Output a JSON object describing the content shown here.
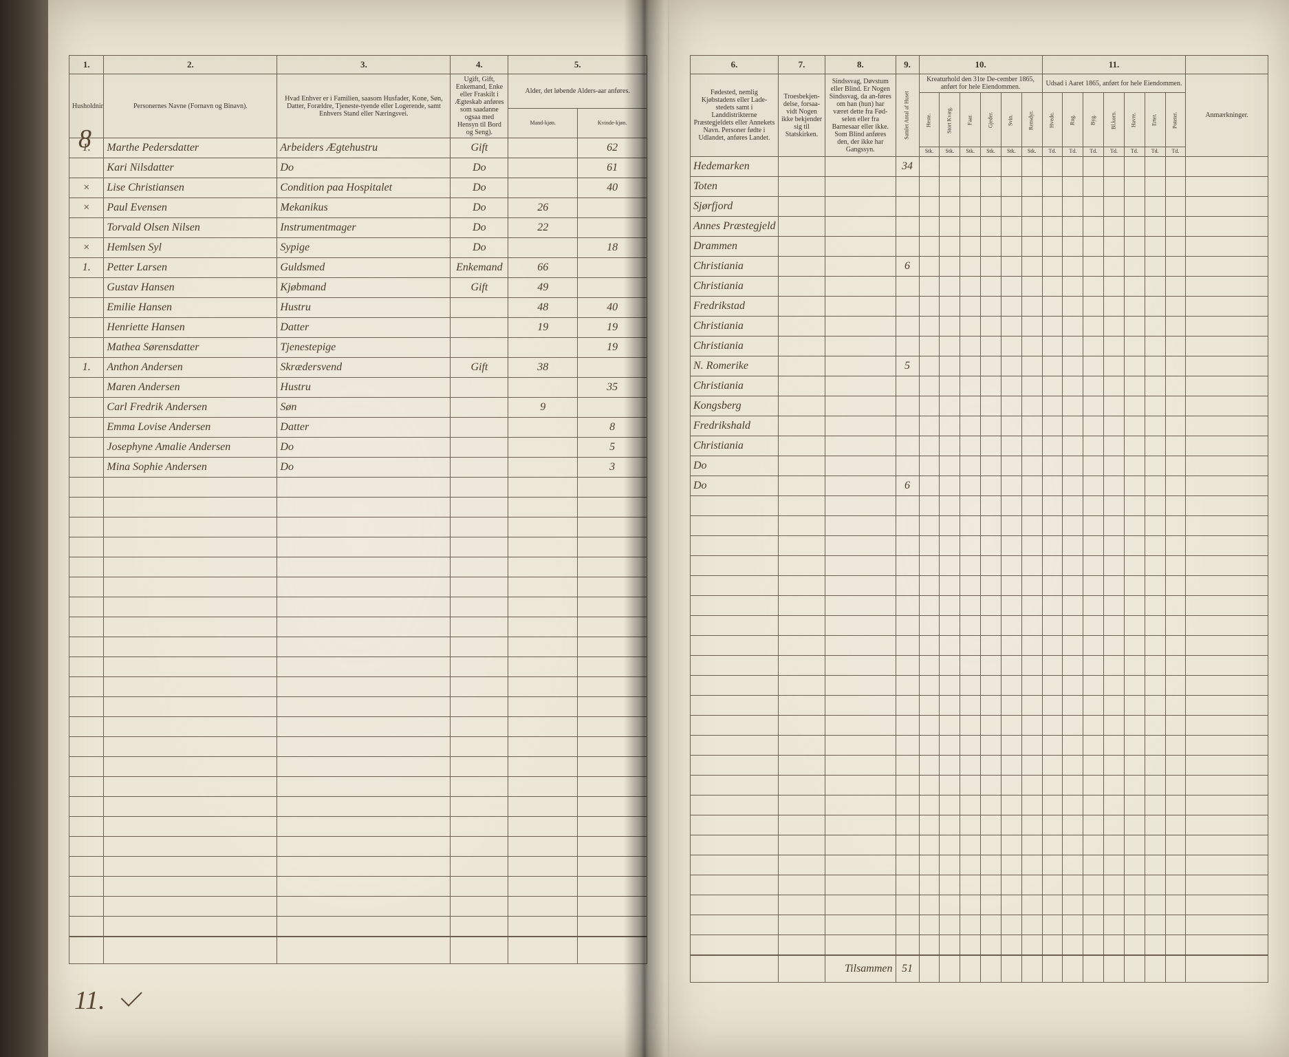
{
  "colors": {
    "paper": "#ece6d6",
    "ink_print": "#3a332a",
    "ink_hand": "#4a3a28",
    "rule": "#6b6050",
    "background": "#1a1410"
  },
  "left_page": {
    "margin_number": "8",
    "footer_margin_number": "11.",
    "columns": {
      "c1": "1.",
      "c2": "2.",
      "c3": "3.",
      "c4": "4.",
      "c5": "5."
    },
    "headers": {
      "h1": "Husholdninger.",
      "h2": "Personernes Navne (Fornavn og Binavn).",
      "h3": "Hvad Enhver er i Familien, saasom Husfader, Kone, Søn, Datter, Forældre, Tjeneste-tyende eller Logerende, samt Enhvers Stand eller Næringsvei.",
      "h4": "Ugift, Gift, Enkemand, Enke eller Fraskilt i Ægteskab anføres som saadanne ogsaa med Hensyn til Bord og Seng).",
      "h5_top": "Alder, det løbende Alders-aar anføres.",
      "h5_m": "Mand-kjøn.",
      "h5_k": "Kvinde-kjøn."
    },
    "rows": [
      {
        "hh": "1.",
        "mark": "",
        "name": "Marthe Pedersdatter",
        "rel": "Arbeiders Ægtehustru",
        "stat": "Gift",
        "m": "",
        "k": "62"
      },
      {
        "hh": "",
        "mark": "",
        "name": "Kari Nilsdatter",
        "rel": "Do",
        "stat": "Do",
        "m": "",
        "k": "61"
      },
      {
        "hh": "",
        "mark": "×",
        "name": "Lise Christiansen",
        "rel": "Condition paa Hospitalet",
        "stat": "Do",
        "m": "",
        "k": "40"
      },
      {
        "hh": "",
        "mark": "×",
        "name": "Paul Evensen",
        "rel": "Mekanikus",
        "stat": "Do",
        "m": "26",
        "k": ""
      },
      {
        "hh": "",
        "mark": "",
        "name": "Torvald Olsen Nilsen",
        "rel": "Instrumentmager",
        "stat": "Do",
        "m": "22",
        "k": ""
      },
      {
        "hh": "",
        "mark": "×",
        "name": "Hemlsen Syl",
        "rel": "Sypige",
        "stat": "Do",
        "m": "",
        "k": "18"
      },
      {
        "hh": "1.",
        "mark": "",
        "name": "Petter Larsen",
        "rel": "Guldsmed",
        "stat": "Enkemand",
        "m": "66",
        "k": ""
      },
      {
        "hh": "",
        "mark": "",
        "name": "Gustav Hansen",
        "rel": "Kjøbmand",
        "stat": "Gift",
        "m": "49",
        "k": ""
      },
      {
        "hh": "",
        "mark": "",
        "name": "Emilie Hansen",
        "rel": "Hustru",
        "stat": "",
        "m": "48",
        "k": "40"
      },
      {
        "hh": "",
        "mark": "",
        "name": "Henriette Hansen",
        "rel": "Datter",
        "stat": "",
        "m": "19",
        "k": "19"
      },
      {
        "hh": "",
        "mark": "",
        "name": "Mathea Sørensdatter",
        "rel": "Tjenestepige",
        "stat": "",
        "m": "",
        "k": "19"
      },
      {
        "hh": "1.",
        "mark": "",
        "name": "Anthon Andersen",
        "rel": "Skrædersvend",
        "stat": "Gift",
        "m": "38",
        "k": ""
      },
      {
        "hh": "",
        "mark": "",
        "name": "Maren Andersen",
        "rel": "Hustru",
        "stat": "",
        "m": "",
        "k": "35"
      },
      {
        "hh": "",
        "mark": "",
        "name": "Carl Fredrik Andersen",
        "rel": "Søn",
        "stat": "",
        "m": "9",
        "k": ""
      },
      {
        "hh": "",
        "mark": "",
        "name": "Emma Lovise Andersen",
        "rel": "Datter",
        "stat": "",
        "m": "",
        "k": "8"
      },
      {
        "hh": "",
        "mark": "",
        "name": "Josephyne Amalie Andersen",
        "rel": "Do",
        "stat": "",
        "m": "",
        "k": "5"
      },
      {
        "hh": "",
        "mark": "",
        "name": "Mina Sophie Andersen",
        "rel": "Do",
        "stat": "",
        "m": "",
        "k": "3"
      }
    ],
    "blank_rows": 23
  },
  "right_page": {
    "columns": {
      "c6": "6.",
      "c7": "7.",
      "c8": "8.",
      "c9": "9.",
      "c10": "10.",
      "c11": "11."
    },
    "headers": {
      "h6": "Fødested, nemlig Kjøbstadens eller Lade-stedets samt i Landdistrikterne Præstegjeldets eller Annekets Navn. Personer fødte i Udlandet, anføres Landet.",
      "h7": "Troesbekjen-delse, forsaa-vidt Nogen ikke bekjender sig til Statskirken.",
      "h8": "Sindssvag, Døvstum eller Blind. Er Nogen Sindssvag, da an-føres om han (hun) har været dette fra Fød-selen eller fra Barnesaar eller ikke. Som Blind anføres den, der ikke har Gangssyn.",
      "h9": "Samlet Antal af Huset",
      "h10_top": "Kreaturhold den 31te De-cember 1865, anført for hele Eiendommen.",
      "h11_top": "Udsad i Aaret 1865, anført for hele Eiendommen.",
      "anm": "Anmærkninger."
    },
    "subcols10": [
      "Heste.",
      "Stort Kvæg.",
      "Faar.",
      "Gjeder.",
      "Svin.",
      "Rensdyr."
    ],
    "subunits10": [
      "Stk.",
      "Stk.",
      "Stk.",
      "Stk.",
      "Stk.",
      "Stk."
    ],
    "subcols11": [
      "Hvede.",
      "Rug.",
      "Byg.",
      "Bl.korn.",
      "Havre.",
      "Erter.",
      "Poteter."
    ],
    "subunits11": [
      "Td.",
      "Td.",
      "Td.",
      "Td.",
      "Td.",
      "Td.",
      "Td."
    ],
    "rows": [
      {
        "birth": "Hedemarken",
        "c9": "34"
      },
      {
        "birth": "Toten",
        "c9": ""
      },
      {
        "birth": "Sjørfjord",
        "c9": ""
      },
      {
        "birth": "Annes Præstegjeld",
        "c9": ""
      },
      {
        "birth": "Drammen",
        "c9": ""
      },
      {
        "birth": "Christiania",
        "c9": "6"
      },
      {
        "birth": "Christiania",
        "c9": ""
      },
      {
        "birth": "Fredrikstad",
        "c9": ""
      },
      {
        "birth": "Christiania",
        "c9": ""
      },
      {
        "birth": "Christiania",
        "c9": ""
      },
      {
        "birth": "N. Romerike",
        "c9": "5"
      },
      {
        "birth": "Christiania",
        "c9": ""
      },
      {
        "birth": "Kongsberg",
        "c9": ""
      },
      {
        "birth": "Fredrikshald",
        "c9": ""
      },
      {
        "birth": "Christiania",
        "c9": ""
      },
      {
        "birth": "Do",
        "c9": ""
      },
      {
        "birth": "Do",
        "c9": "6"
      }
    ],
    "blank_rows": 23,
    "footer": {
      "label": "Tilsammen",
      "total": "51"
    }
  }
}
